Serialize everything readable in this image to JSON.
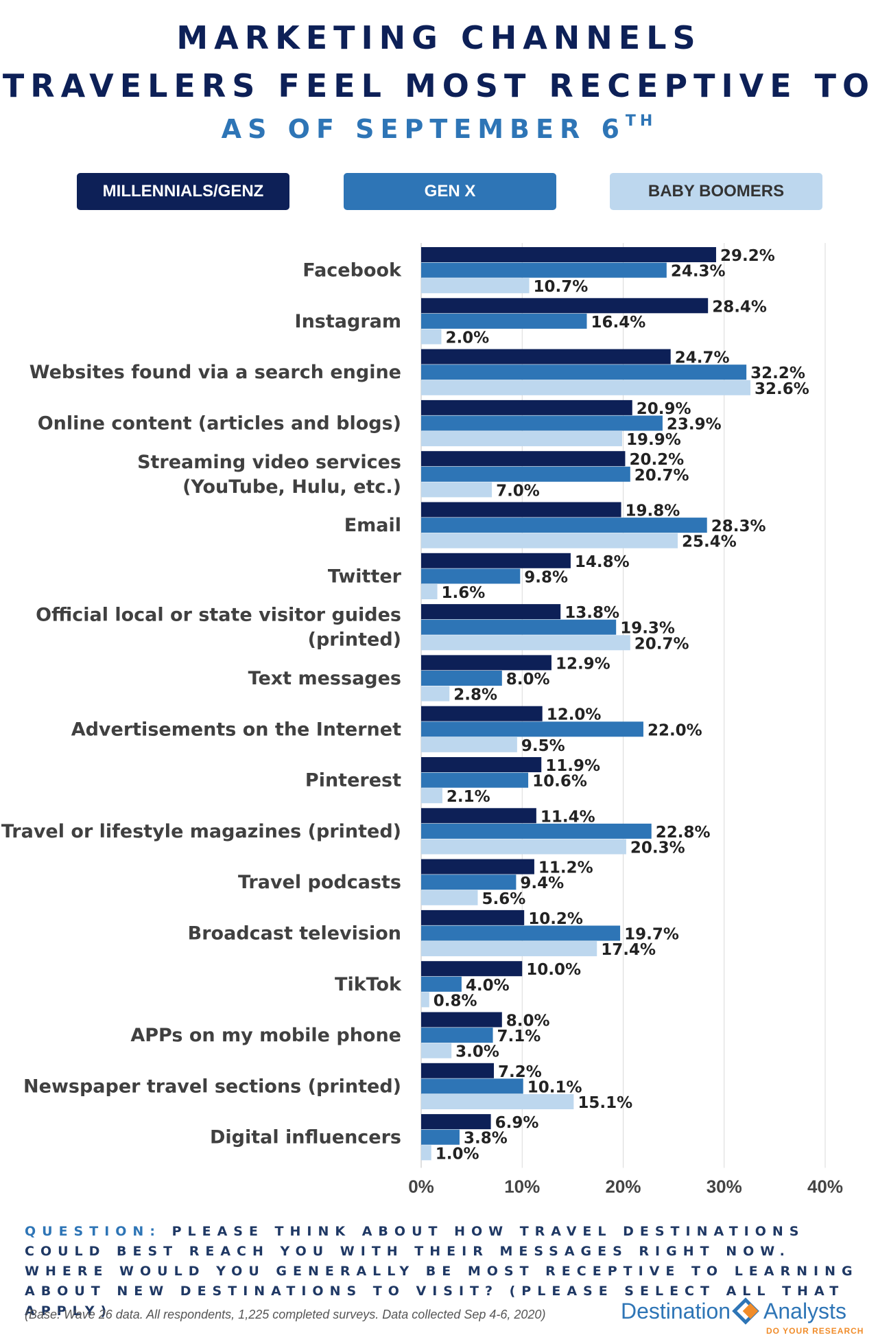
{
  "header": {
    "title_line1": "MARKETING CHANNELS",
    "title_line2": "TRAVELERS FEEL MOST RECEPTIVE TO",
    "subtitle": "AS OF SEPTEMBER 6",
    "subtitle_sup": "TH"
  },
  "legend": {
    "items": [
      "MILLENNIALS/GENZ",
      "GEN X",
      "BABY BOOMERS"
    ]
  },
  "colors": {
    "millennials": "#0d2057",
    "genx": "#2e75b6",
    "boomers": "#bdd7ee"
  },
  "chart_data": {
    "type": "bar",
    "orientation": "horizontal",
    "categories": [
      "Facebook",
      "Instagram",
      "Websites found via a search engine",
      "Online content (articles and blogs)",
      "Streaming video services\n(YouTube, Hulu, etc.)",
      "Email",
      "Twitter",
      "Official local or state visitor guides\n(printed)",
      "Text messages",
      "Advertisements on the Internet",
      "Pinterest",
      "Travel or lifestyle magazines (printed)",
      "Travel podcasts",
      "Broadcast television",
      "TikTok",
      "APPs on my mobile phone",
      "Newspaper travel sections (printed)",
      "Digital influencers"
    ],
    "series": [
      {
        "name": "MILLENNIALS/GENZ",
        "values": [
          29.2,
          28.4,
          24.7,
          20.9,
          20.2,
          19.8,
          14.8,
          13.8,
          12.9,
          12.0,
          11.9,
          11.4,
          11.2,
          10.2,
          10.0,
          8.0,
          7.2,
          6.9
        ]
      },
      {
        "name": "GEN X",
        "values": [
          24.3,
          16.4,
          32.2,
          23.9,
          20.7,
          28.3,
          9.8,
          19.3,
          8.0,
          22.0,
          10.6,
          22.8,
          9.4,
          19.7,
          4.0,
          7.1,
          10.1,
          3.8
        ]
      },
      {
        "name": "BABY BOOMERS",
        "values": [
          10.7,
          2.0,
          32.6,
          19.9,
          7.0,
          25.4,
          1.6,
          20.7,
          2.8,
          9.5,
          2.1,
          20.3,
          5.6,
          17.4,
          0.8,
          3.0,
          15.1,
          1.0
        ]
      }
    ],
    "xlim": [
      0,
      40
    ],
    "xticks": [
      "0%",
      "10%",
      "20%",
      "30%",
      "40%"
    ],
    "value_suffix": "%",
    "grid": true
  },
  "footer": {
    "question_label": "QUESTION:",
    "question_text": "PLEASE THINK ABOUT HOW TRAVEL DESTINATIONS COULD BEST REACH YOU WITH THEIR MESSAGES RIGHT NOW. WHERE WOULD YOU GENERALLY BE MOST RECEPTIVE TO LEARNING ABOUT NEW DESTINATIONS TO VISIT? (PLEASE SELECT ALL THAT APPLY)",
    "base_note": "(Base: Wave 26 data. All respondents, 1,225 completed surveys. Data collected Sep 4-6, 2020)",
    "logo_word1": "Destination",
    "logo_word2": "Analysts",
    "logo_tagline": "DO YOUR RESEARCH"
  }
}
